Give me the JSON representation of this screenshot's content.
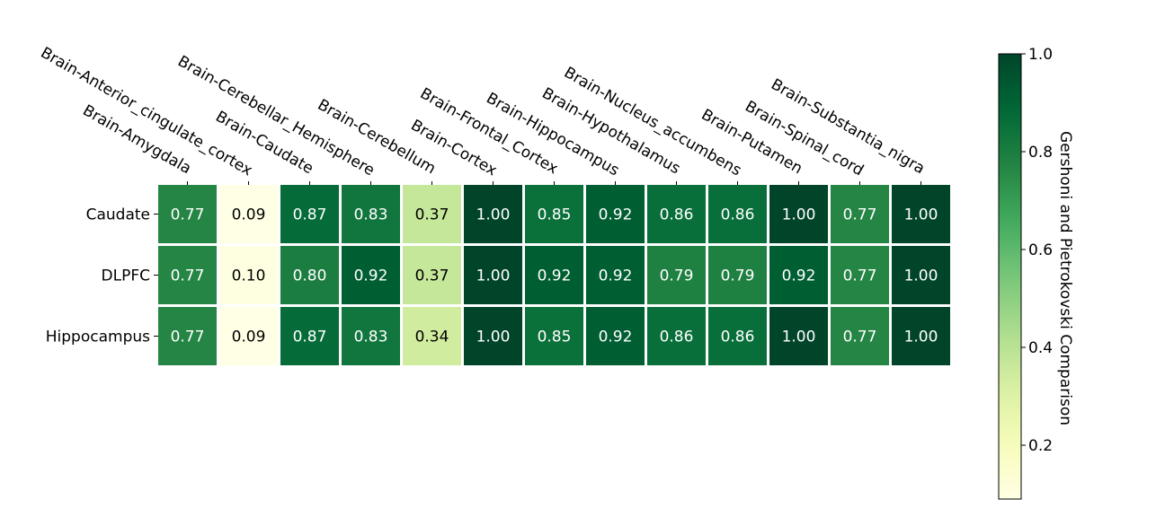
{
  "chart_data": {
    "type": "heatmap",
    "x_categories": [
      "Brain-Amygdala",
      "Brain-Anterior_cingulate_cortex",
      "Brain-Caudate",
      "Brain-Cerebellar_Hemisphere",
      "Brain-Cerebellum",
      "Brain-Cortex",
      "Brain-Frontal_Cortex",
      "Brain-Hippocampus",
      "Brain-Hypothalamus",
      "Brain-Nucleus_accumbens",
      "Brain-Putamen",
      "Brain-Spinal_cord",
      "Brain-Substantia_nigra"
    ],
    "y_categories": [
      "Caudate",
      "DLPFC",
      "Hippocampus"
    ],
    "values": [
      [
        0.77,
        0.09,
        0.87,
        0.83,
        0.37,
        1.0,
        0.85,
        0.92,
        0.86,
        0.86,
        1.0,
        0.77,
        1.0
      ],
      [
        0.77,
        0.1,
        0.8,
        0.92,
        0.37,
        1.0,
        0.92,
        0.92,
        0.79,
        0.79,
        0.92,
        0.77,
        1.0
      ],
      [
        0.77,
        0.09,
        0.87,
        0.83,
        0.34,
        1.0,
        0.85,
        0.92,
        0.86,
        0.86,
        1.0,
        0.77,
        1.0
      ]
    ],
    "value_labels": [
      [
        "0.77",
        "0.09",
        "0.87",
        "0.83",
        "0.37",
        "1.00",
        "0.85",
        "0.92",
        "0.86",
        "0.86",
        "1.00",
        "0.77",
        "1.00"
      ],
      [
        "0.77",
        "0.10",
        "0.80",
        "0.92",
        "0.37",
        "1.00",
        "0.92",
        "0.92",
        "0.79",
        "0.79",
        "0.92",
        "0.77",
        "1.00"
      ],
      [
        "0.77",
        "0.09",
        "0.87",
        "0.83",
        "0.34",
        "1.00",
        "0.85",
        "0.92",
        "0.86",
        "0.86",
        "1.00",
        "0.77",
        "1.00"
      ]
    ],
    "colormap": "YlGn",
    "colorbar": {
      "label": "Gershoni and Pietrokovski Comparison",
      "range": [
        0.09,
        1.0
      ],
      "ticks": [
        0.2,
        0.4,
        0.6,
        0.8,
        1.0
      ],
      "tick_labels": [
        "0.2",
        "0.4",
        "0.6",
        "0.8",
        "1.0"
      ]
    },
    "x_tick_position": "top",
    "grid": false
  }
}
